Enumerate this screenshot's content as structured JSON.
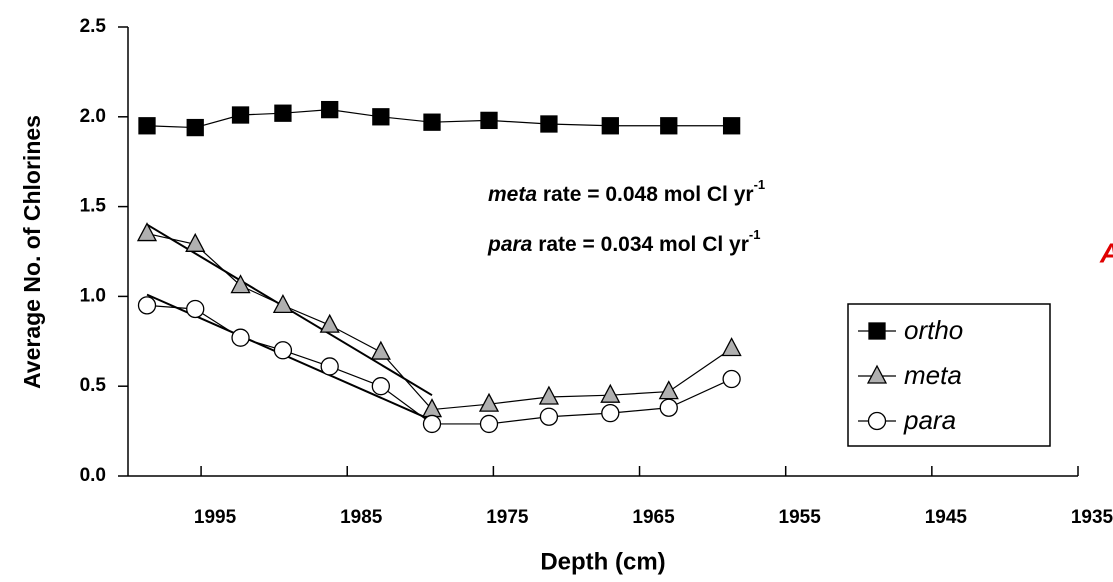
{
  "chart_data": {
    "type": "line",
    "x_label": "Depth (cm)",
    "y_label": "Average No. of Chlorines",
    "xlim": [
      2000,
      1935
    ],
    "ylim": [
      0,
      2.5
    ],
    "xticks": [
      1995,
      1985,
      1975,
      1965,
      1955,
      1945,
      1935
    ],
    "yticks": [
      {
        "value": 0,
        "label": "0.0"
      },
      {
        "value": 0.5,
        "label": "0.5"
      },
      {
        "value": 1,
        "label": "1.0"
      },
      {
        "value": 1.5,
        "label": "1.5"
      },
      {
        "value": 2,
        "label": "2.0"
      },
      {
        "value": 2.5,
        "label": "2.5"
      }
    ],
    "x": [
      1998.7,
      1995.4,
      1992.3,
      1989.4,
      1986.2,
      1982.7,
      1979.2,
      1975.3,
      1971.2,
      1967.0,
      1963.0,
      1958.7
    ],
    "series": [
      {
        "name": "ortho",
        "color": "#000000",
        "marker": "square",
        "values": [
          1.95,
          1.94,
          2.01,
          2.02,
          2.04,
          2.0,
          1.97,
          1.98,
          1.96,
          1.95,
          1.95,
          1.95
        ]
      },
      {
        "name": "meta",
        "color": "#b0b0b0",
        "marker": "triangle",
        "values": [
          1.35,
          1.29,
          1.06,
          0.95,
          0.84,
          0.69,
          0.37,
          0.4,
          0.44,
          0.45,
          0.47,
          0.71
        ]
      },
      {
        "name": "para",
        "color": "#ffffff",
        "marker": "circle",
        "values": [
          0.95,
          0.93,
          0.77,
          0.7,
          0.61,
          0.5,
          0.29,
          0.29,
          0.33,
          0.35,
          0.38,
          0.54
        ]
      }
    ],
    "trend_lines": [
      {
        "x": [
          1998.7,
          1979.2
        ],
        "values": [
          1.4,
          0.45
        ],
        "color": "#000000"
      },
      {
        "x": [
          1998.7,
          1979.2
        ],
        "values": [
          1.01,
          0.31
        ],
        "color": "#000000"
      }
    ],
    "annotations": [
      {
        "species": "meta",
        "text": "rate = 0.048 mol Cl yr",
        "superscript": "-1"
      },
      {
        "species": "para",
        "text": "rate = 0.034 mol Cl yr",
        "superscript": "-1"
      }
    ],
    "panel_label": {
      "text": "A",
      "color": "#e00000"
    },
    "legend": "lower-right"
  }
}
